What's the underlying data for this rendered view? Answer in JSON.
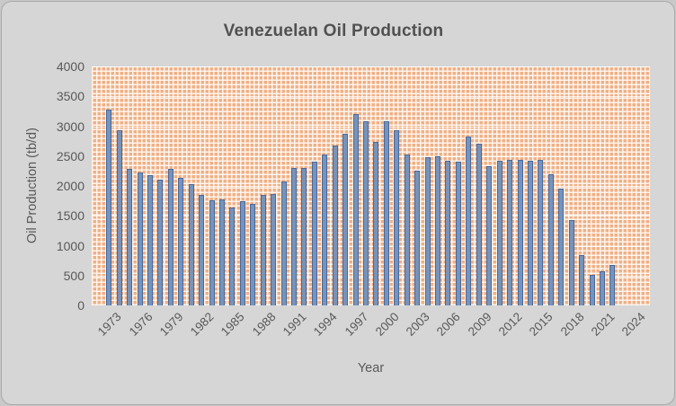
{
  "chart": {
    "title": "Venezuelan Oil Production",
    "y_axis": {
      "label": "Oil Production (tb/d)",
      "min": 0,
      "max": 4000,
      "step": 500,
      "tick_labels": [
        "0",
        "500",
        "1000",
        "1500",
        "2000",
        "2500",
        "3000",
        "3500",
        "4000"
      ]
    },
    "x_axis": {
      "label": "Year",
      "tick_labels": [
        "1973",
        "1976",
        "1979",
        "1982",
        "1985",
        "1988",
        "1991",
        "1994",
        "1997",
        "2000",
        "2003",
        "2006",
        "2009",
        "2012",
        "2015",
        "2018",
        "2021",
        "2024"
      ]
    },
    "colors": {
      "bar_fill": "#7693bb",
      "bar_border": "#49699c",
      "plot_pattern_orange": "#f0af85",
      "plot_pattern_line": "#fdf4ec",
      "chart_background": "#d6d6d6",
      "text": "#595959",
      "gridline": "#ffffff"
    }
  },
  "chart_data": {
    "type": "bar",
    "title": "Venezuelan Oil Production",
    "xlabel": "Year",
    "ylabel": "Oil Production (tb/d)",
    "ylim": [
      0,
      4000
    ],
    "grid": "white horizontal major gridlines every 500 over orange dotted-grid pattern fill",
    "legend": "none",
    "x_axis_label_interval": 3,
    "x_axis_extends_to": 2024,
    "categories": [
      1973,
      1974,
      1975,
      1976,
      1977,
      1978,
      1979,
      1980,
      1981,
      1982,
      1983,
      1984,
      1985,
      1986,
      1987,
      1988,
      1989,
      1990,
      1991,
      1992,
      1993,
      1994,
      1995,
      1996,
      1997,
      1998,
      1999,
      2000,
      2001,
      2002,
      2003,
      2004,
      2005,
      2006,
      2007,
      2008,
      2009,
      2010,
      2011,
      2012,
      2013,
      2014,
      2015,
      2016,
      2017,
      2018,
      2019,
      2020,
      2021,
      2022
    ],
    "values": [
      3280,
      2930,
      2290,
      2230,
      2180,
      2110,
      2290,
      2140,
      2030,
      1850,
      1760,
      1770,
      1640,
      1740,
      1700,
      1850,
      1860,
      2080,
      2300,
      2300,
      2400,
      2530,
      2680,
      2870,
      3200,
      3080,
      2740,
      3080,
      2930,
      2520,
      2260,
      2480,
      2490,
      2420,
      2410,
      2820,
      2700,
      2330,
      2420,
      2430,
      2430,
      2420,
      2430,
      2190,
      1950,
      1430,
      845,
      510,
      570,
      680
    ]
  }
}
